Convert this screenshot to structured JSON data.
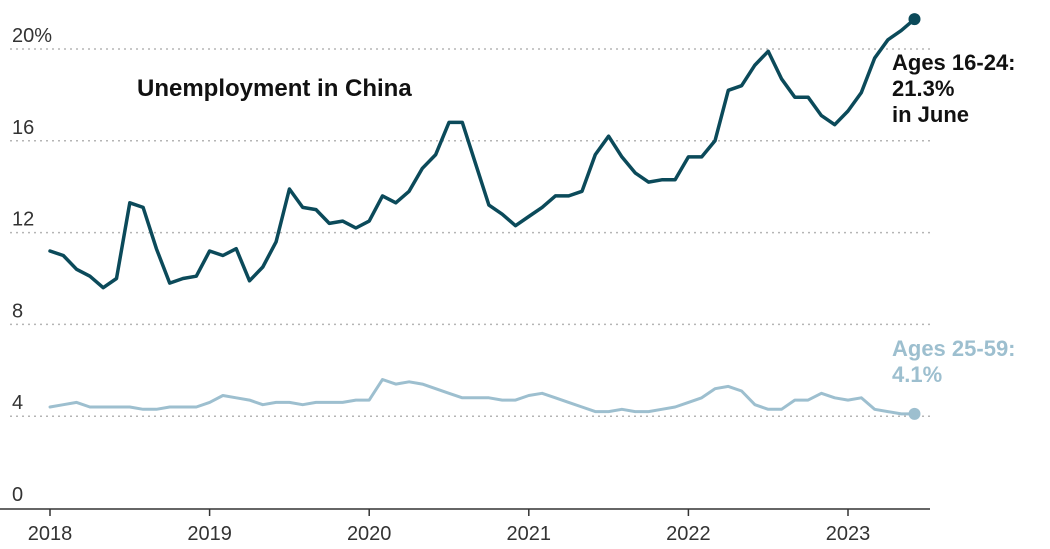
{
  "chart_data": {
    "type": "line",
    "title": "Unemployment in China",
    "xlabel": "",
    "ylabel": "",
    "ylim": [
      0,
      20
    ],
    "xlim": [
      "2018-01",
      "2023-06"
    ],
    "grid": true,
    "y_ticks": [
      {
        "value": 0,
        "label": "0"
      },
      {
        "value": 4,
        "label": "4"
      },
      {
        "value": 8,
        "label": "8"
      },
      {
        "value": 12,
        "label": "12"
      },
      {
        "value": 16,
        "label": "16"
      },
      {
        "value": 20,
        "label": "20%"
      }
    ],
    "x_ticks": [
      {
        "value": "2018-01",
        "label": "2018"
      },
      {
        "value": "2019-01",
        "label": "2019"
      },
      {
        "value": "2020-01",
        "label": "2020"
      },
      {
        "value": "2021-01",
        "label": "2021"
      },
      {
        "value": "2022-01",
        "label": "2022"
      },
      {
        "value": "2023-01",
        "label": "2023"
      }
    ],
    "x": [
      "2018-01",
      "2018-02",
      "2018-03",
      "2018-04",
      "2018-05",
      "2018-06",
      "2018-07",
      "2018-08",
      "2018-09",
      "2018-10",
      "2018-11",
      "2018-12",
      "2019-01",
      "2019-02",
      "2019-03",
      "2019-04",
      "2019-05",
      "2019-06",
      "2019-07",
      "2019-08",
      "2019-09",
      "2019-10",
      "2019-11",
      "2019-12",
      "2020-01",
      "2020-02",
      "2020-03",
      "2020-04",
      "2020-05",
      "2020-06",
      "2020-07",
      "2020-08",
      "2020-09",
      "2020-10",
      "2020-11",
      "2020-12",
      "2021-01",
      "2021-02",
      "2021-03",
      "2021-04",
      "2021-05",
      "2021-06",
      "2021-07",
      "2021-08",
      "2021-09",
      "2021-10",
      "2021-11",
      "2021-12",
      "2022-01",
      "2022-02",
      "2022-03",
      "2022-04",
      "2022-05",
      "2022-06",
      "2022-07",
      "2022-08",
      "2022-09",
      "2022-10",
      "2022-11",
      "2022-12",
      "2023-01",
      "2023-02",
      "2023-03",
      "2023-04",
      "2023-05",
      "2023-06"
    ],
    "series": [
      {
        "name": "Ages 16-24",
        "color": "#0b4a5a",
        "values": [
          11.2,
          11.0,
          10.4,
          10.1,
          9.6,
          10.0,
          13.3,
          13.1,
          11.3,
          9.8,
          10.0,
          10.1,
          11.2,
          11.0,
          11.3,
          9.9,
          10.5,
          11.6,
          13.9,
          13.1,
          13.0,
          12.4,
          12.5,
          12.2,
          12.5,
          13.6,
          13.3,
          13.8,
          14.8,
          15.4,
          16.8,
          16.8,
          15.0,
          13.2,
          12.8,
          12.3,
          12.7,
          13.1,
          13.6,
          13.6,
          13.8,
          15.4,
          16.2,
          15.3,
          14.6,
          14.2,
          14.3,
          14.3,
          15.3,
          15.3,
          16.0,
          18.2,
          18.4,
          19.3,
          19.9,
          18.7,
          17.9,
          17.9,
          17.1,
          16.7,
          17.3,
          18.1,
          19.6,
          20.4,
          20.8,
          21.3
        ],
        "end_label": [
          "Ages 16-24:",
          "21.3%",
          "in June"
        ]
      },
      {
        "name": "Ages 25-59",
        "color": "#9dbfcf",
        "values": [
          4.4,
          4.5,
          4.6,
          4.4,
          4.4,
          4.4,
          4.4,
          4.3,
          4.3,
          4.4,
          4.4,
          4.4,
          4.6,
          4.9,
          4.8,
          4.7,
          4.5,
          4.6,
          4.6,
          4.5,
          4.6,
          4.6,
          4.6,
          4.7,
          4.7,
          5.6,
          5.4,
          5.5,
          5.4,
          5.2,
          5.0,
          4.8,
          4.8,
          4.8,
          4.7,
          4.7,
          4.9,
          5.0,
          4.8,
          4.6,
          4.4,
          4.2,
          4.2,
          4.3,
          4.2,
          4.2,
          4.3,
          4.4,
          4.6,
          4.8,
          5.2,
          5.3,
          5.1,
          4.5,
          4.3,
          4.3,
          4.7,
          4.7,
          5.0,
          4.8,
          4.7,
          4.8,
          4.3,
          4.2,
          4.1,
          4.1
        ],
        "end_label": [
          "Ages 25-59:",
          "4.1%"
        ]
      }
    ]
  }
}
